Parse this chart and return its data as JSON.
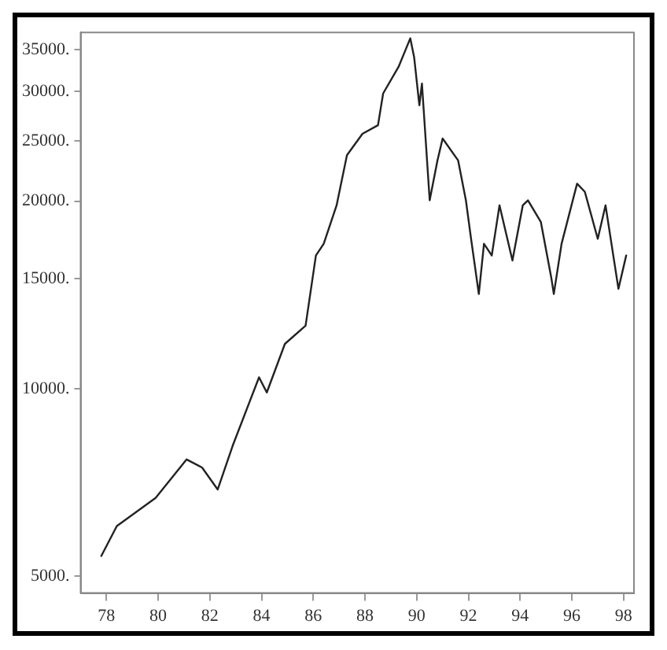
{
  "chart_data": {
    "type": "line",
    "log": "y",
    "grid": false,
    "legend": false,
    "marker": "none",
    "line_style": "solid",
    "x": [
      1977.8,
      1978.4,
      1979.9,
      1981.1,
      1981.7,
      1982.3,
      1982.9,
      1983.9,
      1984.2,
      1984.9,
      1985.7,
      1986.1,
      1986.4,
      1986.9,
      1987.3,
      1987.9,
      1988.5,
      1988.7,
      1989.3,
      1989.75,
      1989.9,
      1990.1,
      1990.2,
      1990.5,
      1990.8,
      1991.0,
      1991.6,
      1991.9,
      1992.1,
      1992.4,
      1992.6,
      1992.9,
      1993.2,
      1993.7,
      1994.1,
      1994.3,
      1994.8,
      1995.2,
      1995.3,
      1995.6,
      1996.2,
      1996.5,
      1997.0,
      1997.3,
      1997.8,
      1998.1
    ],
    "series": [
      {
        "color": "#222222",
        "values": [
          5390,
          6020,
          6680,
          7700,
          7470,
          6890,
          8140,
          10430,
          9860,
          11800,
          12620,
          16360,
          17080,
          19690,
          23700,
          25650,
          26470,
          29770,
          32870,
          36500,
          34000,
          28500,
          30870,
          20060,
          23240,
          25200,
          23240,
          20060,
          17400,
          14190,
          17080,
          16360,
          19690,
          16060,
          19690,
          20060,
          18510,
          15090,
          14190,
          17080,
          21330,
          20700,
          17400,
          19690,
          14460,
          16360
        ]
      }
    ],
    "xlim": [
      1977,
      1998.4
    ],
    "xticks": [
      {
        "value": 1978,
        "label": "78"
      },
      {
        "value": 1980,
        "label": "80"
      },
      {
        "value": 1982,
        "label": "82"
      },
      {
        "value": 1984,
        "label": "84"
      },
      {
        "value": 1986,
        "label": "86"
      },
      {
        "value": 1988,
        "label": "88"
      },
      {
        "value": 1990,
        "label": "90"
      },
      {
        "value": 1992,
        "label": "92"
      },
      {
        "value": 1994,
        "label": "94"
      },
      {
        "value": 1996,
        "label": "96"
      },
      {
        "value": 1998,
        "label": "98"
      }
    ],
    "ylim": [
      4700,
      37300
    ],
    "yticks": [
      {
        "value": 5000,
        "label": "5000."
      },
      {
        "value": 10000,
        "label": "10000."
      },
      {
        "value": 15000,
        "label": "15000."
      },
      {
        "value": 20000,
        "label": "20000."
      },
      {
        "value": 25000,
        "label": "25000."
      },
      {
        "value": 30000,
        "label": "30000."
      },
      {
        "value": 35000,
        "label": "35000."
      }
    ]
  }
}
